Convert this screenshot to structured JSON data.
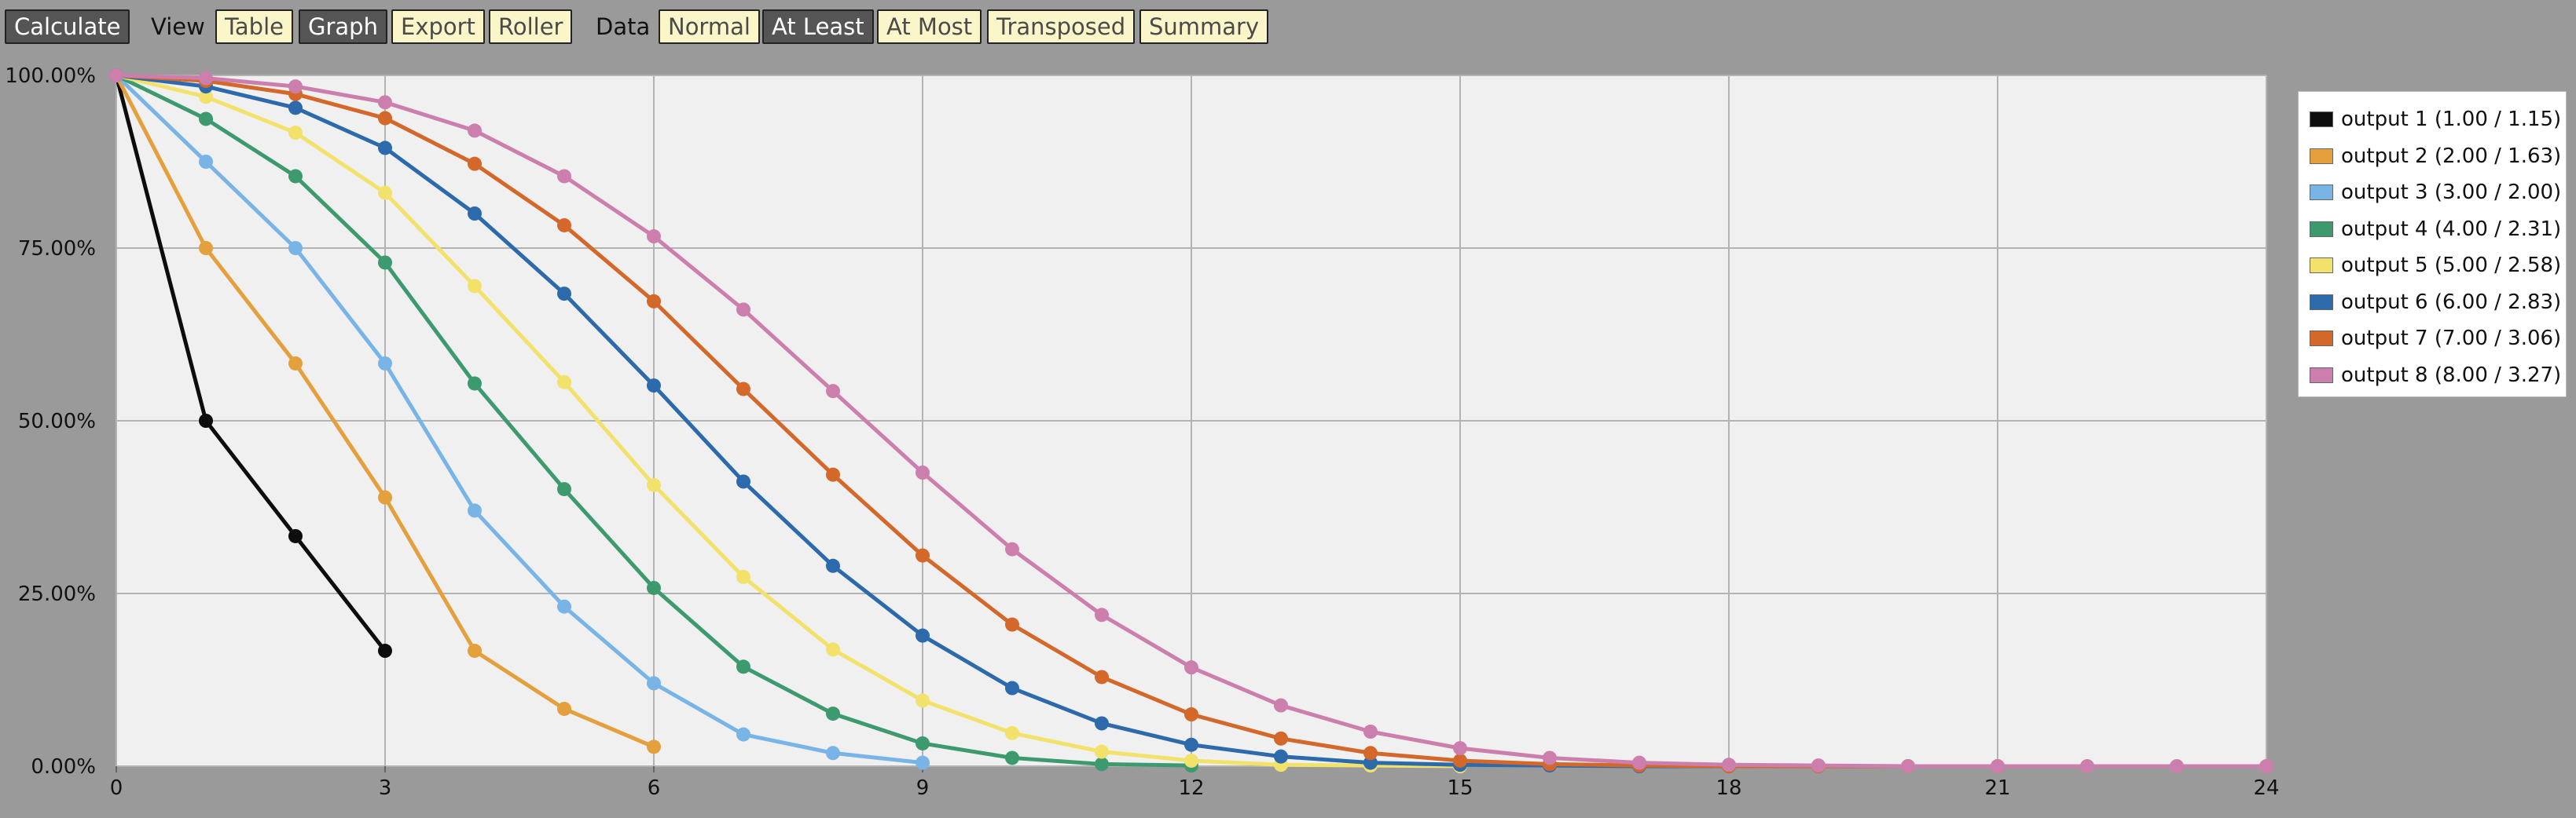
{
  "toolbar": {
    "calculate": "Calculate",
    "view_label": "View",
    "table": "Table",
    "graph": "Graph",
    "export": "Export",
    "roller": "Roller",
    "data_label": "Data",
    "normal": "Normal",
    "at_least": "At Least",
    "at_most": "At Most",
    "transposed": "Transposed",
    "summary": "Summary",
    "active_view": "Graph",
    "active_data": "At Least"
  },
  "chart_data": {
    "type": "line",
    "x_ticks": [
      "0",
      "3",
      "6",
      "9",
      "12",
      "15",
      "18",
      "21",
      "24"
    ],
    "y_ticks": [
      "0.00%",
      "25.00%",
      "50.00%",
      "75.00%",
      "100.00%"
    ],
    "xlim": [
      0,
      24
    ],
    "ylim": [
      0,
      100
    ],
    "grid": true,
    "legend_position": "right",
    "series": [
      {
        "name": "output 1 (1.00 / 1.15)",
        "color": "#0d0d0d",
        "values": [
          100,
          50,
          33.3,
          16.7
        ]
      },
      {
        "name": "output 2 (2.00 / 1.63)",
        "color": "#e3a03c",
        "values": [
          100,
          75,
          58.3,
          38.9,
          16.7,
          8.3,
          2.8
        ]
      },
      {
        "name": "output 3 (3.00 / 2.00)",
        "color": "#78b5e6",
        "values": [
          100,
          87.5,
          75,
          58.3,
          37,
          23.1,
          12,
          4.6,
          1.9,
          0.5
        ]
      },
      {
        "name": "output 4 (4.00 / 2.31)",
        "color": "#3d9a6e",
        "values": [
          100,
          93.7,
          85.4,
          72.9,
          55.4,
          40.1,
          25.8,
          14.4,
          7.6,
          3.3,
          1.2,
          0.3,
          0.1
        ]
      },
      {
        "name": "output 5 (5.00 / 2.58)",
        "color": "#f2e26b",
        "values": [
          100,
          96.9,
          91.7,
          83,
          69.5,
          55.6,
          40.7,
          27.4,
          16.9,
          9.5,
          4.8,
          2.1,
          0.8,
          0.2,
          0.1,
          0
        ]
      },
      {
        "name": "output 6 (6.00 / 2.83)",
        "color": "#2c6aac",
        "values": [
          100,
          98.4,
          95.3,
          89.5,
          80,
          68.4,
          55.1,
          41.2,
          29,
          18.9,
          11.3,
          6.2,
          3.1,
          1.4,
          0.5,
          0.2,
          0.1,
          0,
          0
        ]
      },
      {
        "name": "output 7 (7.00 / 3.06)",
        "color": "#d4672a",
        "values": [
          100,
          99.2,
          97.3,
          93.8,
          87.2,
          78.3,
          67.3,
          54.6,
          42.2,
          30.5,
          20.5,
          12.9,
          7.5,
          4,
          1.9,
          0.8,
          0.3,
          0.1,
          0,
          0,
          0,
          0
        ]
      },
      {
        "name": "output 8 (8.00 / 3.27)",
        "color": "#cc7fac",
        "values": [
          100,
          99.6,
          98.4,
          96.1,
          92,
          85.4,
          76.7,
          66.1,
          54.3,
          42.5,
          31.4,
          21.9,
          14.3,
          8.8,
          5,
          2.6,
          1.2,
          0.5,
          0.2,
          0.1,
          0,
          0,
          0,
          0,
          0
        ]
      }
    ]
  }
}
